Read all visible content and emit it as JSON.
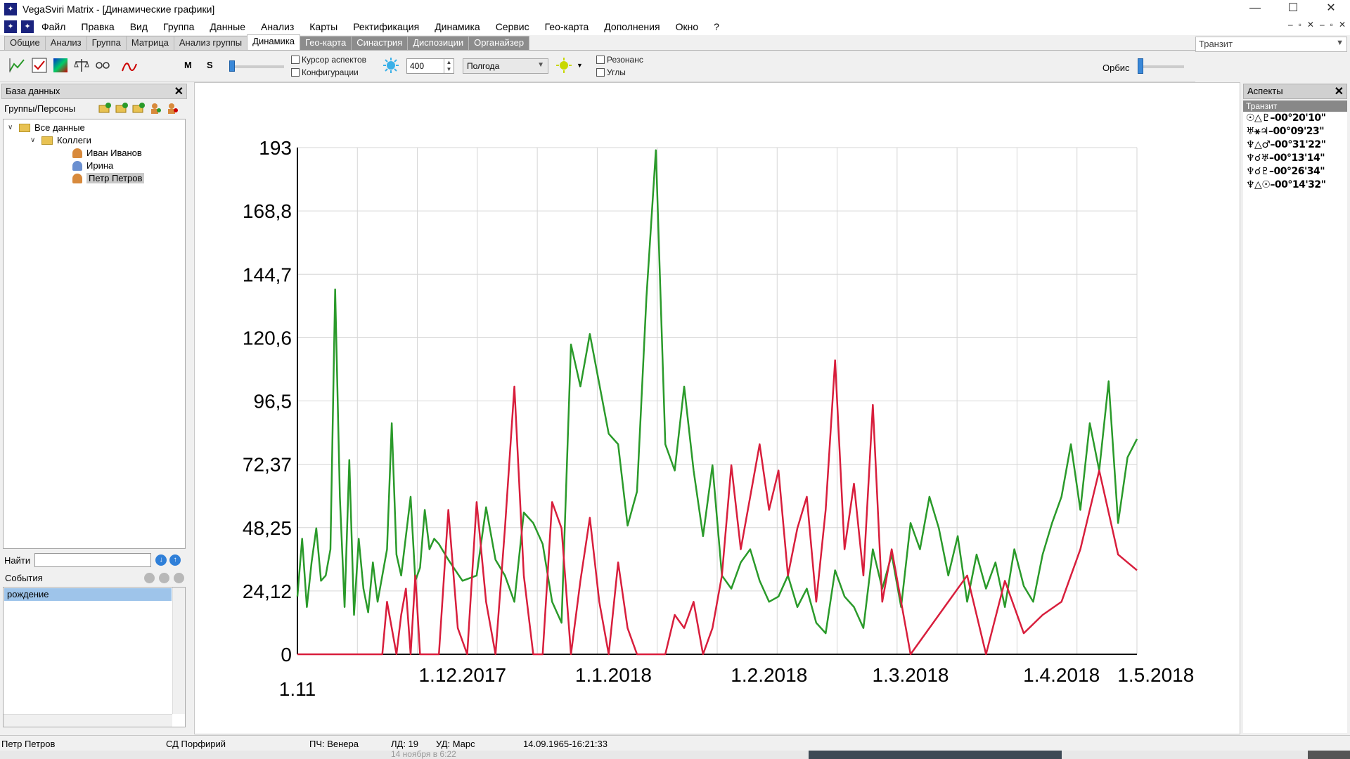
{
  "window": {
    "title": "VegaSviri Matrix - [Динамические графики]"
  },
  "menu": [
    "Файл",
    "Правка",
    "Вид",
    "Группа",
    "Данные",
    "Анализ",
    "Карты",
    "Ректификация",
    "Динамика",
    "Сервис",
    "Гео-карта",
    "Дополнения",
    "Окно",
    "?"
  ],
  "tabs": [
    {
      "label": "Общие"
    },
    {
      "label": "Анализ"
    },
    {
      "label": "Группа"
    },
    {
      "label": "Матрица"
    },
    {
      "label": "Анализ группы"
    },
    {
      "label": "Динамика",
      "active": true
    },
    {
      "label": "Гео-карта"
    },
    {
      "label": "Синастрия"
    },
    {
      "label": "Диспозиции"
    },
    {
      "label": "Органайзер"
    }
  ],
  "transit_select": "Транзит",
  "toolbar": {
    "letter_m": "M",
    "letter_s": "S",
    "cursor_aspects": "Курсор аспектов",
    "configurations": "Конфигурации",
    "spin_value": "400",
    "period": "Полгода",
    "resonance": "Резонанс",
    "angles": "Углы",
    "orbis_label": "Орбис"
  },
  "database_panel": {
    "title": "База данных",
    "groups_label": "Группы/Персоны",
    "tree": [
      {
        "label": "Все данные",
        "type": "folder",
        "level": 0
      },
      {
        "label": "Коллеги",
        "type": "folder",
        "level": 1
      },
      {
        "label": "Иван Иванов",
        "type": "person",
        "level": 2
      },
      {
        "label": "Ирина",
        "type": "person-blue",
        "level": 2
      },
      {
        "label": "Петр Петров",
        "type": "person",
        "level": 2,
        "selected": true
      }
    ],
    "find_label": "Найти",
    "events_label": "События",
    "events": [
      "рождение"
    ]
  },
  "aspects_panel": {
    "title": "Аспекты",
    "subtitle": "Транзит",
    "items": [
      "☉△♇–00°20'10\"",
      "♅⚹♃–00°09'23\"",
      "♆△♂–00°31'22\"",
      "♆☌♅–00°13'14\"",
      "♆☌♇–00°26'34\"",
      "♆△☉–00°14'32\""
    ]
  },
  "status": {
    "person": "Петр Петров",
    "sd": "СД Порфирий",
    "pch": "ПЧ: Венера",
    "ld": "ЛД: 19",
    "ud": "УД: Марс",
    "datetime": "14.09.1965-16:21:33"
  },
  "taskbar_text": "14 ноября в 6:22",
  "chart_data": {
    "type": "line",
    "ylim": [
      0,
      193
    ],
    "y_ticks": [
      "193",
      "168,8",
      "144,7",
      "120,6",
      "96,5",
      "72,37",
      "48,25",
      "24,12",
      "0"
    ],
    "x_ticks": [
      "1.11",
      "1.12.2017",
      "1.1.2018",
      "1.2.2018",
      "1.3.2018",
      "1.4.2018",
      "1.5.2018"
    ],
    "colors": {
      "green": "#2a9a2a",
      "red": "#d81e3c",
      "grid": "#d6d6d6"
    },
    "series": [
      {
        "color": "#2a9a2a",
        "x": [
          0,
          1,
          2,
          3,
          4,
          5,
          6,
          7,
          8,
          9,
          10,
          11,
          12,
          13,
          14,
          15,
          16,
          17,
          18,
          19,
          20,
          21,
          22,
          23,
          24,
          25,
          26,
          27,
          28,
          29,
          30,
          32,
          35,
          38,
          40,
          42,
          44,
          46,
          48,
          50,
          52,
          54,
          56,
          58,
          60,
          62,
          64,
          66,
          68,
          70,
          72,
          74,
          76,
          78,
          80,
          82,
          84,
          86,
          88,
          90,
          92,
          94,
          96,
          98,
          100,
          102,
          104,
          106,
          108,
          110,
          112,
          114,
          116,
          118,
          120,
          122,
          124,
          126,
          128,
          130,
          132,
          134,
          136,
          138,
          140,
          142,
          144,
          146,
          148,
          150,
          152,
          154,
          156,
          158,
          160,
          162,
          164,
          166,
          168,
          170,
          172,
          174,
          176,
          178
        ],
        "y": [
          22,
          44,
          18,
          35,
          48,
          28,
          30,
          40,
          139,
          60,
          18,
          74,
          15,
          44,
          25,
          16,
          35,
          20,
          30,
          40,
          88,
          38,
          30,
          45,
          60,
          28,
          33,
          55,
          40,
          44,
          42,
          36,
          28,
          30,
          56,
          36,
          30,
          20,
          54,
          50,
          42,
          20,
          12,
          118,
          102,
          122,
          103,
          84,
          80,
          49,
          62,
          136,
          192,
          80,
          70,
          102,
          70,
          45,
          72,
          30,
          25,
          35,
          40,
          28,
          20,
          22,
          30,
          18,
          25,
          12,
          8,
          32,
          22,
          18,
          10,
          40,
          25,
          38,
          18,
          50,
          40,
          60,
          48,
          30,
          45,
          20,
          38,
          25,
          35,
          18,
          40,
          26,
          20,
          38,
          50,
          60,
          80,
          55,
          88,
          70,
          104,
          50,
          75,
          82
        ]
      },
      {
        "color": "#d81e3c",
        "x": [
          0,
          1,
          2,
          3,
          4,
          5,
          6,
          7,
          8,
          9,
          10,
          11,
          12,
          13,
          14,
          15,
          16,
          17,
          18,
          19,
          20,
          21,
          22,
          23,
          24,
          25,
          26,
          27,
          28,
          29,
          30,
          32,
          34,
          36,
          38,
          40,
          42,
          44,
          46,
          48,
          50,
          52,
          54,
          56,
          58,
          60,
          62,
          64,
          66,
          68,
          70,
          72,
          74,
          76,
          78,
          80,
          82,
          84,
          86,
          88,
          90,
          92,
          94,
          96,
          98,
          100,
          102,
          104,
          106,
          108,
          110,
          112,
          114,
          116,
          118,
          120,
          122,
          124,
          126,
          130,
          134,
          138,
          142,
          146,
          150,
          154,
          158,
          162,
          166,
          170,
          174,
          178
        ],
        "y": [
          0,
          0,
          0,
          0,
          0,
          0,
          0,
          0,
          0,
          0,
          0,
          0,
          0,
          0,
          0,
          0,
          0,
          0,
          0,
          20,
          10,
          0,
          15,
          25,
          0,
          30,
          0,
          0,
          0,
          0,
          0,
          55,
          10,
          0,
          58,
          20,
          0,
          48,
          102,
          30,
          0,
          0,
          58,
          48,
          0,
          28,
          52,
          20,
          0,
          35,
          10,
          0,
          0,
          0,
          0,
          15,
          10,
          20,
          0,
          10,
          30,
          72,
          40,
          60,
          80,
          55,
          70,
          30,
          48,
          60,
          20,
          55,
          112,
          40,
          65,
          30,
          95,
          20,
          40,
          0,
          10,
          20,
          30,
          0,
          28,
          8,
          15,
          20,
          40,
          70,
          38,
          32
        ]
      }
    ]
  }
}
